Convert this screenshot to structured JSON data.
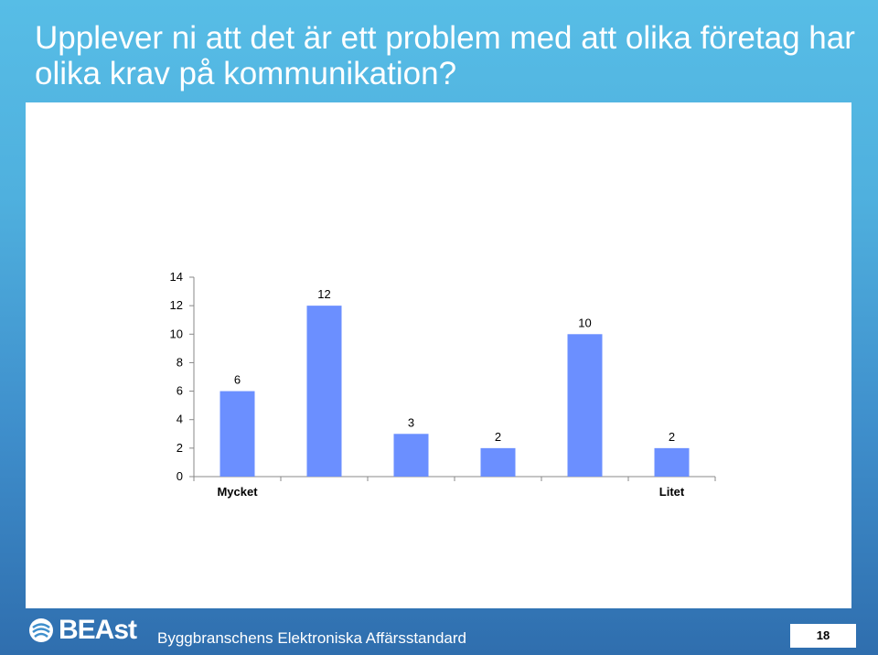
{
  "slide": {
    "title": "Upplever ni att det är ett problem med att olika företag har olika krav på kommunikation?",
    "footer": "Byggbranschens Elektroniska Affärsstandard",
    "logo_text": "BEAst",
    "page_number": "18"
  },
  "colors": {
    "bar": "#6b8fff",
    "axis": "#888888"
  },
  "chart_data": {
    "type": "bar",
    "categories": [
      "Mycket",
      "",
      "",
      "",
      "",
      "Litet"
    ],
    "values": [
      6,
      12,
      3,
      2,
      10,
      2
    ],
    "data_labels": [
      "6",
      "12",
      "3",
      "2",
      "10",
      "2"
    ],
    "ylim": [
      0,
      14
    ],
    "yticks": [
      0,
      2,
      4,
      6,
      8,
      10,
      12,
      14
    ],
    "grid": false,
    "legend": "none",
    "title": "",
    "xlabel": "",
    "ylabel": ""
  }
}
